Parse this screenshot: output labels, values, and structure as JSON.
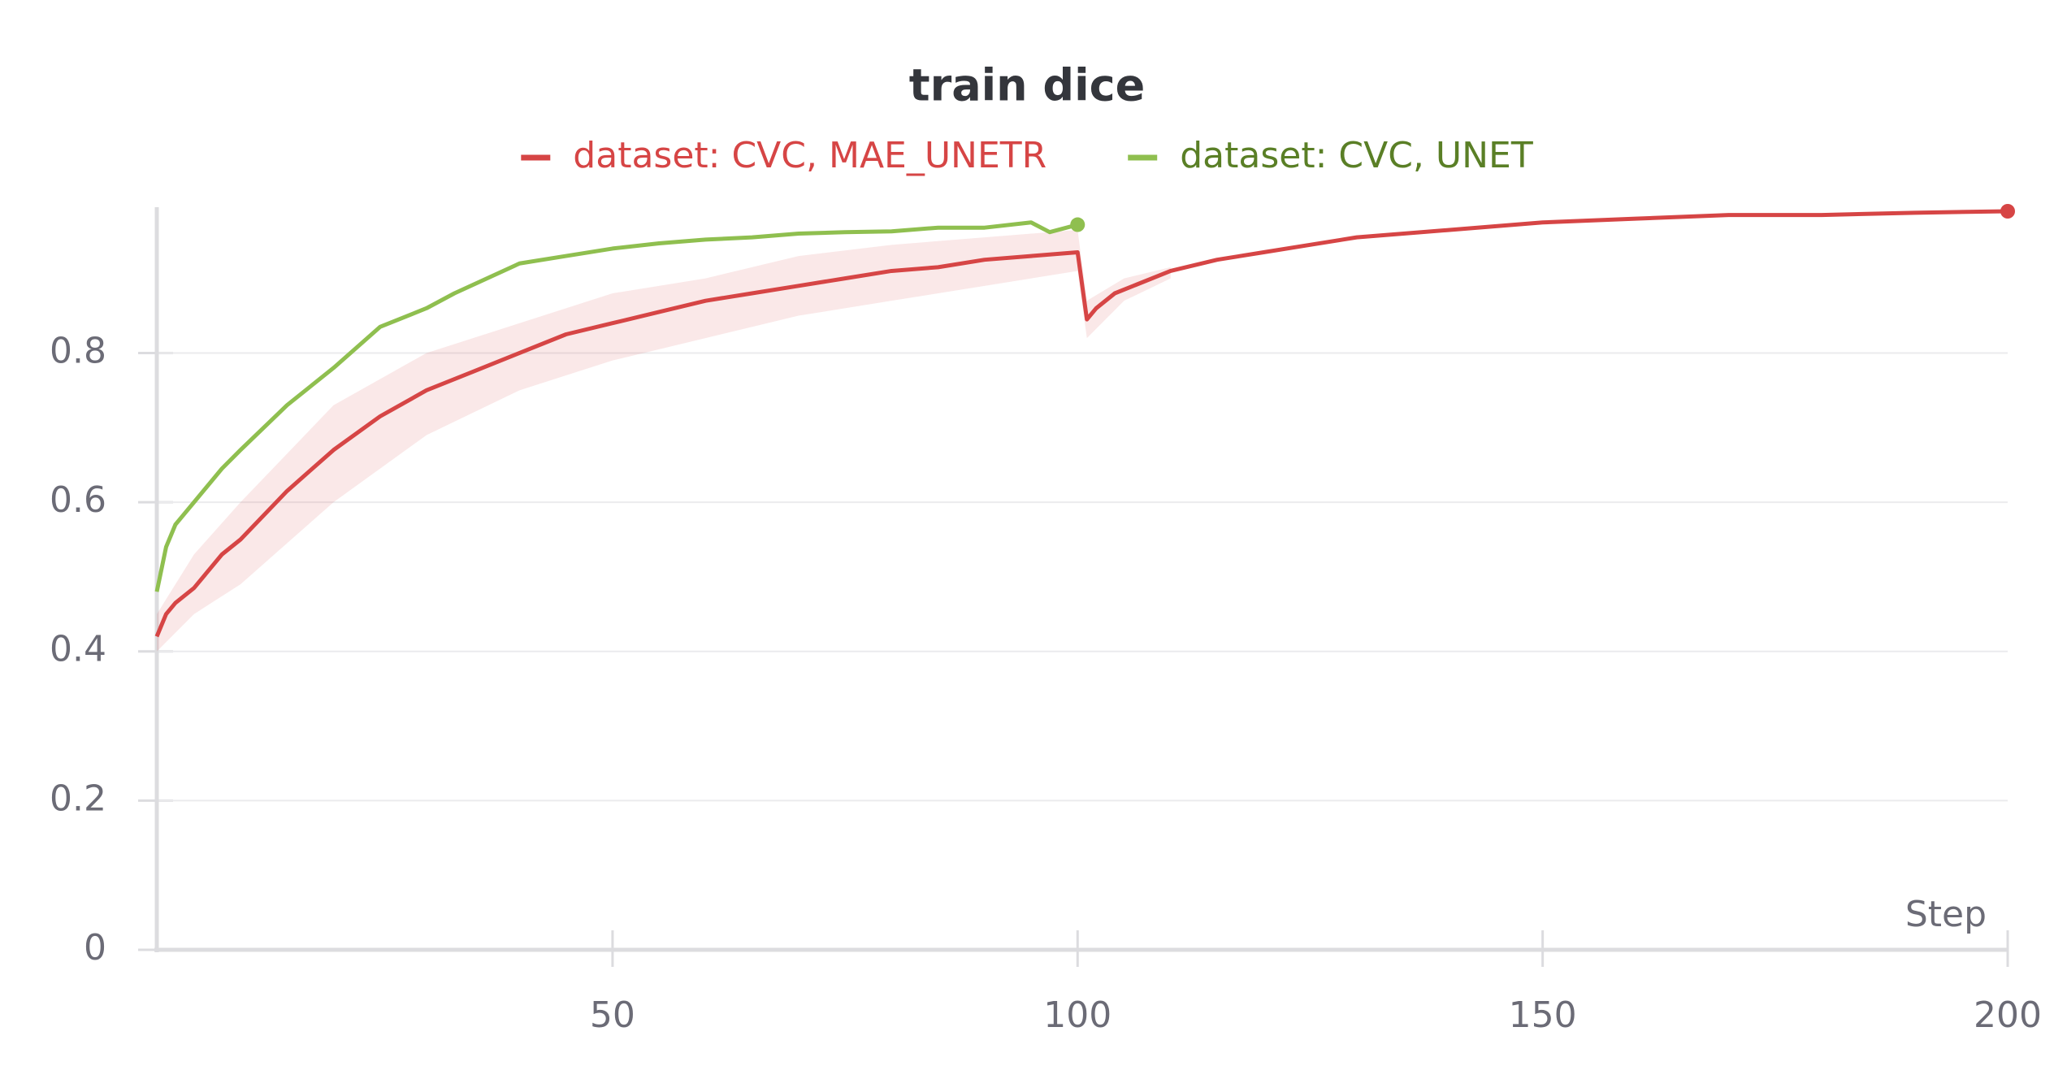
{
  "chart_data": {
    "type": "line",
    "title": "train dice",
    "x_label": "Step",
    "legend_position": "top",
    "grid": true,
    "xlim": [
      1,
      200
    ],
    "xticks": [
      50,
      100,
      150,
      200
    ],
    "ylim": [
      0,
      0.99
    ],
    "yticks": [
      0,
      0.2,
      0.4,
      0.6,
      0.8
    ],
    "series": [
      {
        "name": "dataset: CVC, MAE_UNETR",
        "color": "#d64545",
        "x": [
          1,
          2,
          3,
          5,
          8,
          10,
          15,
          20,
          25,
          30,
          35,
          40,
          45,
          50,
          55,
          60,
          65,
          70,
          75,
          80,
          85,
          90,
          95,
          100,
          101,
          102,
          104,
          106,
          110,
          115,
          120,
          125,
          130,
          140,
          150,
          160,
          170,
          180,
          190,
          200
        ],
        "values": [
          0.42,
          0.45,
          0.465,
          0.485,
          0.53,
          0.55,
          0.615,
          0.67,
          0.715,
          0.75,
          0.775,
          0.8,
          0.825,
          0.84,
          0.855,
          0.87,
          0.88,
          0.89,
          0.9,
          0.91,
          0.915,
          0.925,
          0.93,
          0.935,
          0.845,
          0.86,
          0.88,
          0.89,
          0.91,
          0.925,
          0.935,
          0.945,
          0.955,
          0.965,
          0.975,
          0.98,
          0.985,
          0.985,
          0.988,
          0.99
        ],
        "band": {
          "x": [
            1,
            5,
            10,
            20,
            30,
            40,
            50,
            60,
            70,
            80,
            90,
            100,
            101,
            105,
            110
          ],
          "lower": [
            0.4,
            0.45,
            0.49,
            0.6,
            0.69,
            0.75,
            0.79,
            0.82,
            0.85,
            0.87,
            0.89,
            0.91,
            0.82,
            0.87,
            0.9
          ],
          "upper": [
            0.45,
            0.53,
            0.6,
            0.73,
            0.8,
            0.84,
            0.88,
            0.9,
            0.93,
            0.945,
            0.955,
            0.965,
            0.87,
            0.9,
            0.915
          ]
        }
      },
      {
        "name": "dataset: CVC, UNET",
        "color": "#8fbf4f",
        "x": [
          1,
          2,
          3,
          5,
          8,
          10,
          15,
          20,
          25,
          30,
          33,
          40,
          45,
          50,
          55,
          60,
          65,
          70,
          75,
          80,
          85,
          90,
          95,
          97,
          100
        ],
        "values": [
          0.48,
          0.54,
          0.57,
          0.6,
          0.645,
          0.67,
          0.73,
          0.78,
          0.835,
          0.86,
          0.88,
          0.92,
          0.93,
          0.94,
          0.947,
          0.952,
          0.955,
          0.96,
          0.962,
          0.963,
          0.968,
          0.968,
          0.975,
          0.962,
          0.972
        ]
      }
    ]
  }
}
